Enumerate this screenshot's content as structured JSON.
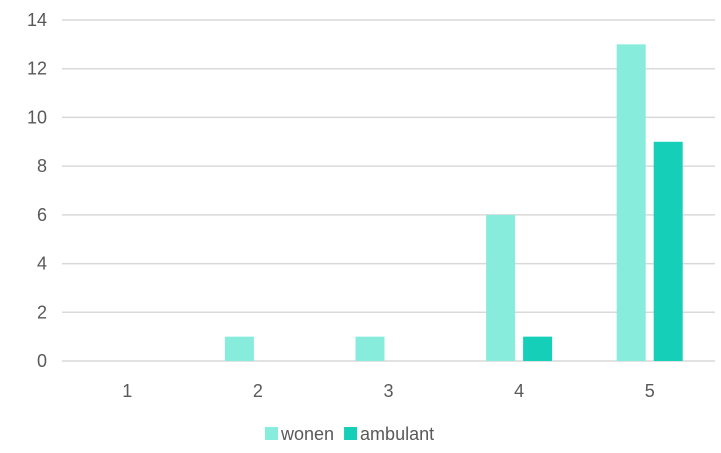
{
  "chart_data": {
    "type": "bar",
    "categories": [
      "1",
      "2",
      "3",
      "4",
      "5"
    ],
    "series": [
      {
        "name": "wonen",
        "values": [
          0,
          1,
          1,
          6,
          13
        ]
      },
      {
        "name": "ambulant",
        "values": [
          0,
          0,
          0,
          1,
          9
        ]
      }
    ],
    "ylim": [
      0,
      14
    ],
    "yticks": [
      "0",
      "2",
      "4",
      "6",
      "8",
      "10",
      "12",
      "14"
    ],
    "grid": true,
    "legend_position": "bottom",
    "colors": {
      "wonen": "#87ecdc",
      "ambulant": "#16cfb8"
    }
  }
}
